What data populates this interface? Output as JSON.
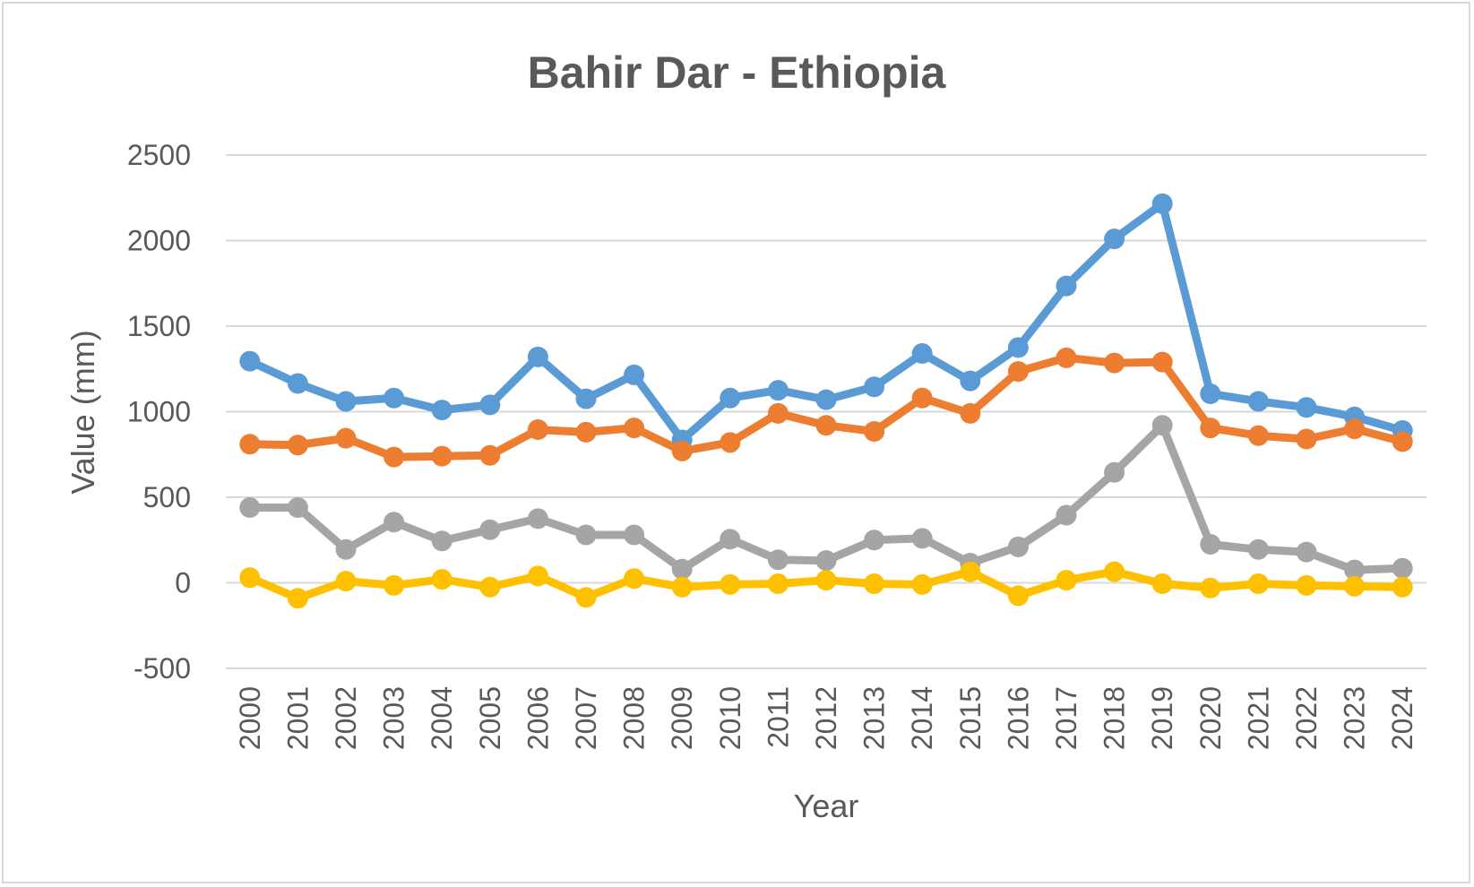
{
  "chart_data": {
    "type": "line",
    "title": "Bahir Dar - Ethiopia",
    "xlabel": "Year",
    "ylabel": "Value (mm)",
    "ylim": [
      -500,
      2500
    ],
    "yticks": [
      2500,
      2000,
      1500,
      1000,
      500,
      0,
      -500
    ],
    "grid": true,
    "legend": "none",
    "categories": [
      "2000",
      "2001",
      "2002",
      "2003",
      "2004",
      "2005",
      "2006",
      "2007",
      "2008",
      "2009",
      "2010",
      "2011",
      "2012",
      "2013",
      "2014",
      "2015",
      "2016",
      "2017",
      "2018",
      "2019",
      "2020",
      "2021",
      "2022",
      "2023",
      "2024"
    ],
    "series": [
      {
        "color": "#5b9bd5",
        "values": [
          1295,
          1165,
          1060,
          1080,
          1010,
          1040,
          1320,
          1075,
          1215,
          835,
          1080,
          1125,
          1070,
          1145,
          1340,
          1180,
          1375,
          1735,
          2010,
          2215,
          1105,
          1060,
          1025,
          970,
          890
        ]
      },
      {
        "color": "#ed7d31",
        "values": [
          810,
          805,
          845,
          735,
          740,
          745,
          895,
          880,
          905,
          770,
          820,
          990,
          920,
          885,
          1080,
          990,
          1235,
          1315,
          1285,
          1290,
          905,
          860,
          840,
          900,
          825
        ]
      },
      {
        "color": "#a5a5a5",
        "values": [
          440,
          440,
          195,
          355,
          245,
          310,
          375,
          280,
          280,
          80,
          255,
          135,
          130,
          250,
          260,
          115,
          210,
          395,
          645,
          920,
          225,
          195,
          180,
          75,
          85
        ]
      },
      {
        "color": "#ffc000",
        "values": [
          30,
          -90,
          10,
          -15,
          20,
          -25,
          40,
          -85,
          25,
          -25,
          -10,
          -5,
          15,
          -5,
          -10,
          65,
          -75,
          15,
          65,
          -5,
          -30,
          -5,
          -15,
          -20,
          -25
        ]
      }
    ]
  }
}
